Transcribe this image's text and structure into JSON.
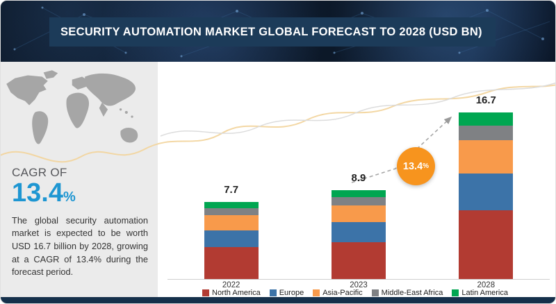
{
  "header": {
    "title": "SECURITY AUTOMATION MARKET GLOBAL FORECAST TO 2028 (USD BN)"
  },
  "sidebar": {
    "cagr_label": "CAGR OF",
    "cagr_value": "13.4",
    "cagr_unit": "%",
    "description": "The global security automation market is expected to be worth USD 16.7 billion by 2028, growing at a CAGR of 13.4% during the forecast period."
  },
  "badge": {
    "text": "13.4",
    "unit": "%"
  },
  "chart_data": {
    "type": "bar",
    "stacked": true,
    "title": "SECURITY AUTOMATION MARKET GLOBAL FORECAST TO 2028 (USD BN)",
    "unit": "USD BN",
    "categories": [
      "2022",
      "2023",
      "2028"
    ],
    "totals": [
      7.7,
      8.9,
      16.7
    ],
    "series": [
      {
        "name": "North America",
        "color": "#b23b32",
        "values": [
          3.2,
          3.7,
          6.9
        ]
      },
      {
        "name": "Europe",
        "color": "#3c73a8",
        "values": [
          1.7,
          2.0,
          3.7
        ]
      },
      {
        "name": "Asia-Pacific",
        "color": "#f89a4b",
        "values": [
          1.5,
          1.7,
          3.3
        ]
      },
      {
        "name": "Middle-East Africa",
        "color": "#7f8184",
        "values": [
          0.7,
          0.8,
          1.5
        ]
      },
      {
        "name": "Latin America",
        "color": "#00a651",
        "values": [
          0.6,
          0.7,
          1.3
        ]
      }
    ],
    "annotation": "13.4%",
    "legend_position": "bottom",
    "ylim": [
      0,
      18
    ]
  },
  "colors": {
    "header_bg": "#1c3b59",
    "accent_blue": "#1e96d2",
    "badge_orange": "#f7941e",
    "panel_bg": "#ebebeb",
    "footer_bg": "#15304b"
  }
}
